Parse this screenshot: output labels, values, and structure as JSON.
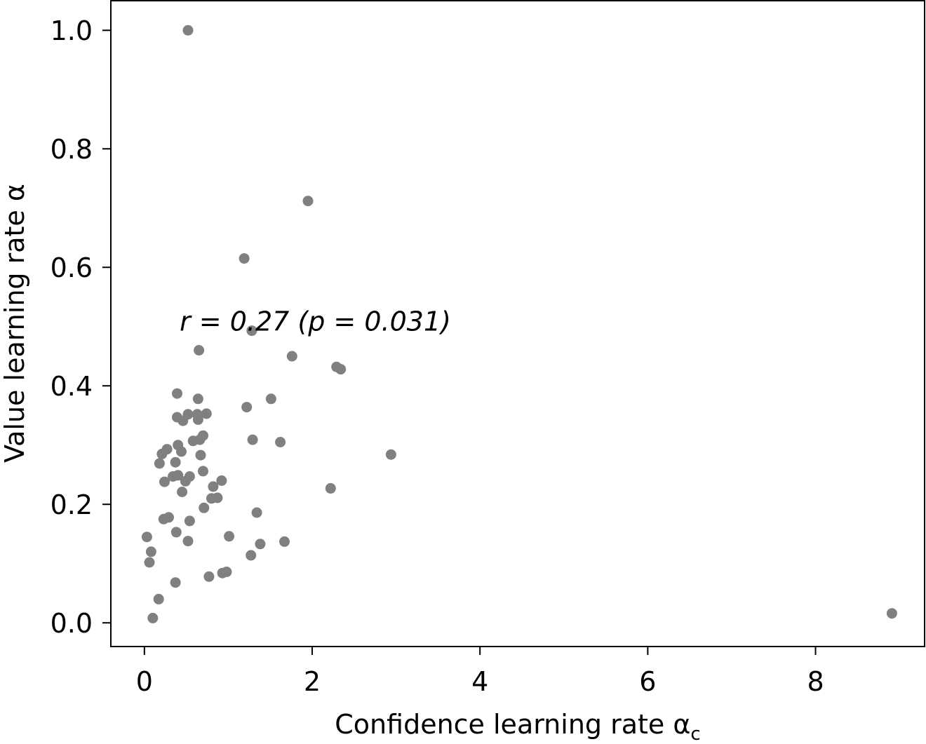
{
  "chart_data": {
    "type": "scatter",
    "xlabel": "Confidence learning rate α",
    "xlabel_subscript": "c",
    "ylabel": "Value learning rate α",
    "xlim": [
      -0.4,
      9.3
    ],
    "ylim": [
      -0.04,
      1.05
    ],
    "xticks": [
      0,
      2,
      4,
      6,
      8
    ],
    "xtick_labels": [
      "0",
      "2",
      "4",
      "6",
      "8"
    ],
    "yticks": [
      0.0,
      0.2,
      0.4,
      0.6,
      0.8,
      1.0
    ],
    "ytick_labels": [
      "0.0",
      "0.2",
      "0.4",
      "0.6",
      "0.8",
      "1.0"
    ],
    "grid": false,
    "marker_color": "#808080",
    "annotation": {
      "text": "r = 0.27  (p = 0.031)",
      "x": 0.42,
      "y": 0.51
    },
    "series": [
      {
        "x": [
          0.52,
          1.95,
          1.19,
          1.28,
          0.65,
          1.76,
          2.29,
          2.34,
          0.39,
          0.64,
          1.51,
          1.22,
          0.52,
          0.63,
          0.74,
          0.39,
          0.46,
          0.64,
          0.7,
          0.58,
          0.66,
          1.29,
          1.62,
          0.4,
          0.27,
          0.21,
          0.44,
          0.67,
          2.94,
          0.18,
          0.37,
          0.7,
          0.4,
          0.54,
          0.49,
          0.34,
          0.24,
          0.92,
          0.82,
          2.22,
          0.45,
          0.8,
          0.87,
          0.71,
          1.34,
          0.29,
          0.23,
          0.54,
          0.03,
          0.38,
          1.01,
          0.52,
          1.38,
          1.67,
          0.08,
          0.06,
          1.27,
          0.93,
          0.98,
          0.77,
          0.37,
          0.17,
          0.1,
          8.91
        ],
        "y": [
          1.0,
          0.712,
          0.615,
          0.493,
          0.46,
          0.45,
          0.432,
          0.428,
          0.387,
          0.378,
          0.378,
          0.364,
          0.352,
          0.352,
          0.353,
          0.347,
          0.341,
          0.343,
          0.316,
          0.307,
          0.309,
          0.309,
          0.305,
          0.3,
          0.293,
          0.285,
          0.289,
          0.283,
          0.284,
          0.269,
          0.271,
          0.256,
          0.249,
          0.247,
          0.239,
          0.247,
          0.238,
          0.24,
          0.23,
          0.227,
          0.221,
          0.21,
          0.211,
          0.194,
          0.186,
          0.178,
          0.175,
          0.172,
          0.145,
          0.153,
          0.146,
          0.138,
          0.133,
          0.137,
          0.12,
          0.102,
          0.114,
          0.084,
          0.086,
          0.078,
          0.068,
          0.04,
          0.008,
          0.016
        ]
      }
    ]
  }
}
